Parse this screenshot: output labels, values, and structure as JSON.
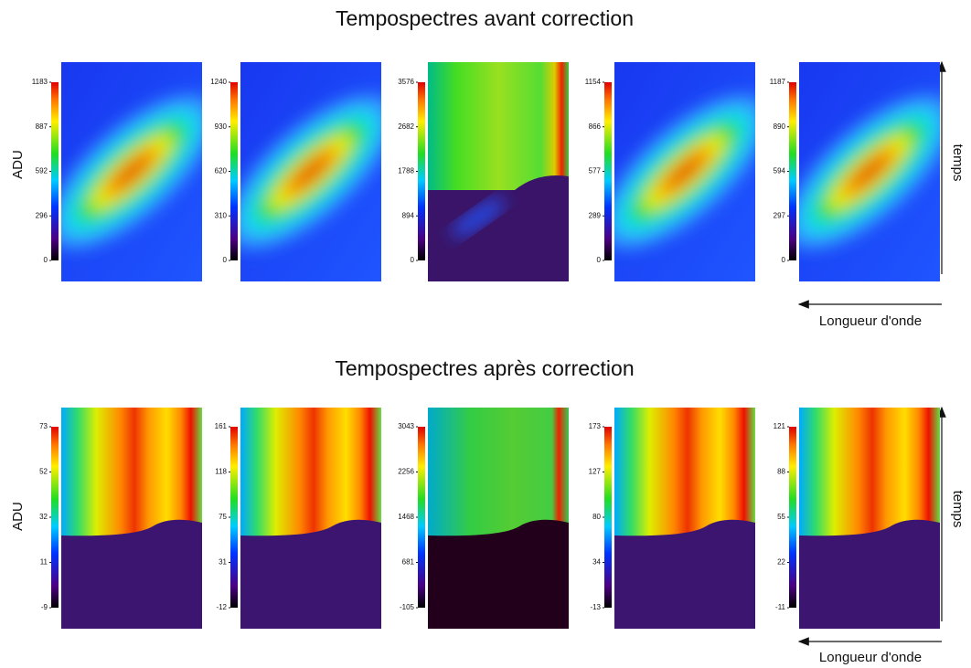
{
  "rows": [
    {
      "title": "Tempospectres avant correction",
      "ylabel": "ADU",
      "time_label": "temps",
      "wavelength_label": "Longueur d'onde",
      "panels": [
        {
          "ticks": [
            0,
            296,
            592,
            887,
            1183
          ]
        },
        {
          "ticks": [
            0,
            310,
            620,
            930,
            1240
          ]
        },
        {
          "ticks": [
            0,
            894,
            1788,
            2682,
            3576
          ]
        },
        {
          "ticks": [
            0,
            289,
            577,
            866,
            1154
          ]
        },
        {
          "ticks": [
            0,
            297,
            594,
            890,
            1187
          ]
        }
      ]
    },
    {
      "title": "Tempospectres après correction",
      "ylabel": "ADU",
      "time_label": "temps",
      "wavelength_label": "Longueur d'onde",
      "panels": [
        {
          "ticks": [
            -9,
            11,
            32,
            52,
            73
          ]
        },
        {
          "ticks": [
            -12,
            31,
            75,
            118,
            161
          ]
        },
        {
          "ticks": [
            -105,
            681,
            1468,
            2256,
            3043
          ]
        },
        {
          "ticks": [
            -13,
            34,
            80,
            127,
            173
          ]
        },
        {
          "ticks": [
            -11,
            22,
            55,
            88,
            121
          ]
        }
      ]
    }
  ]
}
